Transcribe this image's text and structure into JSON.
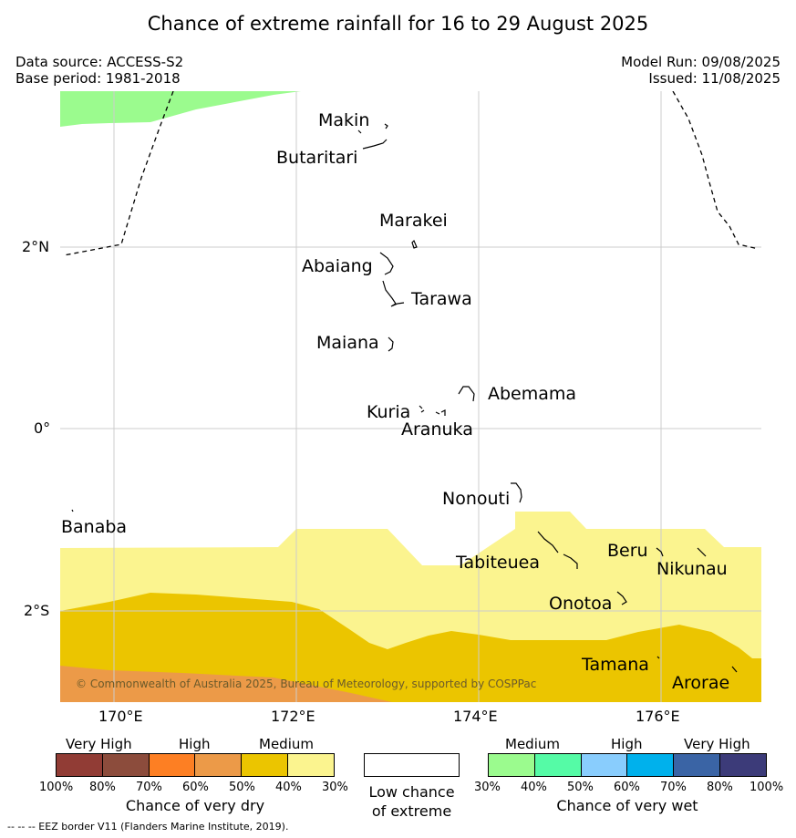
{
  "title": "Chance of extreme rainfall for 16 to 29 August 2025",
  "header": {
    "data_source": "Data source: ACCESS-S2",
    "base_period": "Base period: 1981-2018",
    "model_run": "Model Run: 09/08/2025",
    "issued": "Issued: 11/08/2025"
  },
  "map": {
    "lon_labels": [
      "170°E",
      "172°E",
      "174°E",
      "176°E"
    ],
    "lat_labels": [
      "2°N",
      "0°",
      "2°S"
    ],
    "copyright": "© Commonwealth of Australia 2025, Bureau of Meteorology, supported by COSPPac",
    "places": [
      "Makin",
      "Butaritari",
      "Marakei",
      "Abaiang",
      "Tarawa",
      "Maiana",
      "Abemama",
      "Kuria",
      "Aranuka",
      "Nonouti",
      "Banaba",
      "Tabiteuea",
      "Beru",
      "Nikunau",
      "Onotoa",
      "Tamana",
      "Arorae"
    ],
    "colors": {
      "dry_medium_light": "#fbf48f",
      "dry_medium_dark": "#ebc500",
      "dry_high_light": "#ec9a48",
      "wet_medium_light": "#9bfb8e",
      "gridline": "#cccccc"
    }
  },
  "legend": {
    "dry": {
      "headers": [
        "Very High",
        "High",
        "Medium"
      ],
      "colors": [
        "#913c35",
        "#8c4c3c",
        "#fd7f23",
        "#ec9a48",
        "#ebc500",
        "#fbf48f"
      ],
      "pct": [
        "100%",
        "80%",
        "70%",
        "60%",
        "50%",
        "40%",
        "30%"
      ],
      "caption": "Chance of very dry"
    },
    "low": {
      "caption_1": "Low chance",
      "caption_2": "of extreme"
    },
    "wet": {
      "headers": [
        "Medium",
        "High",
        "Very High"
      ],
      "colors": [
        "#9bfb8e",
        "#55fba6",
        "#89cdfd",
        "#00b1ec",
        "#3a64a5",
        "#3c3b79"
      ],
      "pct": [
        "30%",
        "40%",
        "50%",
        "60%",
        "70%",
        "80%",
        "100%"
      ],
      "caption": "Chance of very wet"
    }
  },
  "footer": "--  --  -- EEZ border V11 (Flanders Marine Institute, 2019)."
}
